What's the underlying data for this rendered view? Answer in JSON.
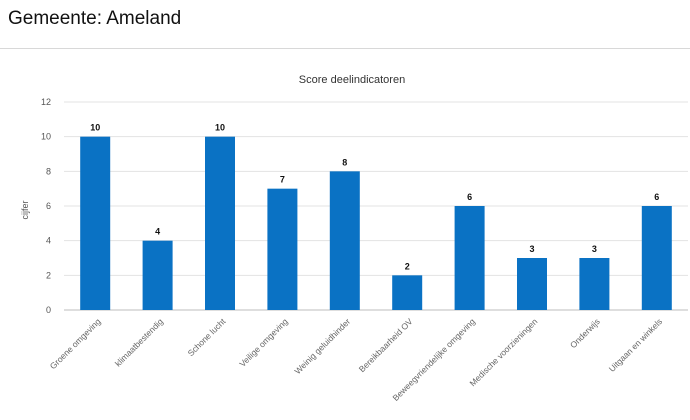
{
  "header": {
    "title": "Gemeente: Ameland"
  },
  "chart_data": {
    "type": "bar",
    "title": "Score deelindicatoren",
    "xlabel": "",
    "ylabel": "cijfer",
    "ylim": [
      0,
      12
    ],
    "yticks": [
      0,
      2,
      4,
      6,
      8,
      10,
      12
    ],
    "grid": true,
    "categories": [
      "Groene omgeving",
      "klimaatbestendig",
      "Schone lucht",
      "Veilige omgeving",
      "Weinig geluidhinder",
      "Bereikbaarheid OV",
      "Beweegvriendelijke omgeving",
      "Medische voorzieningen",
      "Onderwijs",
      "Uitgaan en winkels"
    ],
    "values": [
      10,
      4,
      10,
      7,
      8,
      2,
      6,
      3,
      3,
      6
    ],
    "color": "#0a72c4"
  }
}
